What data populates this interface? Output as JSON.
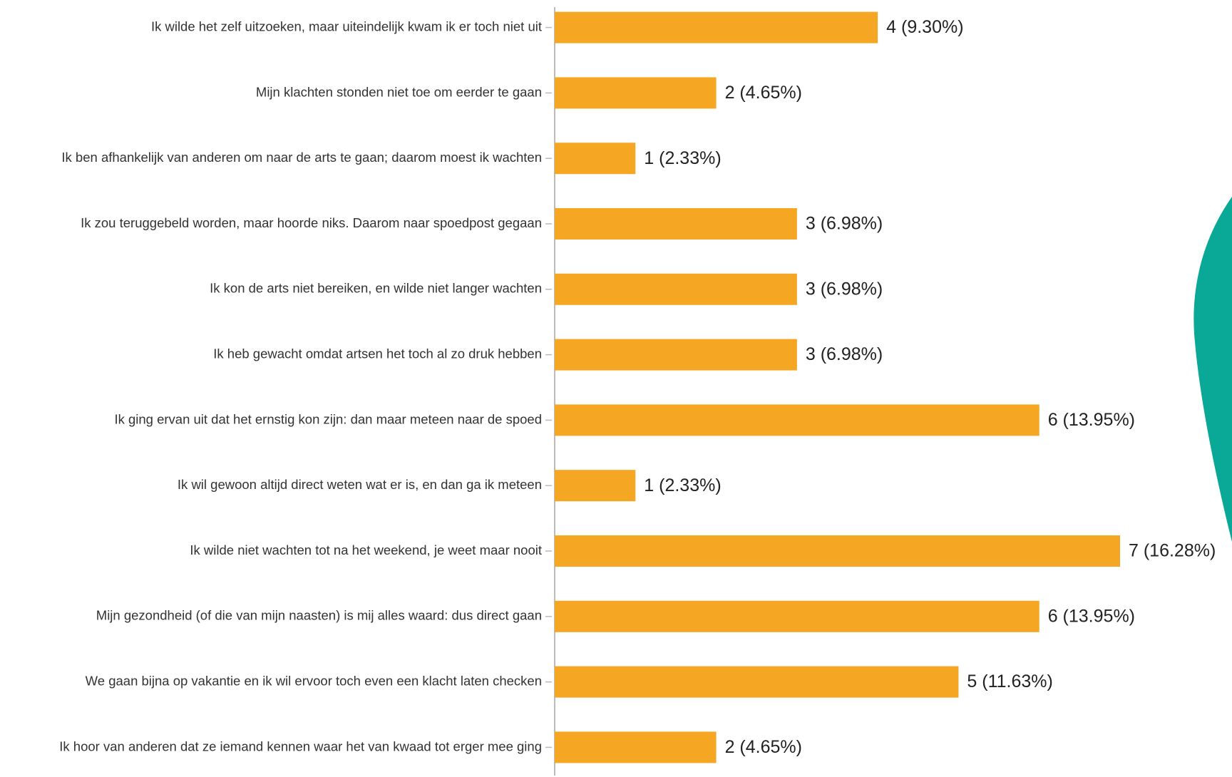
{
  "chart_data": {
    "type": "bar",
    "orientation": "horizontal",
    "color": "#f5a623",
    "categories": [
      "Ik wilde het zelf uitzoeken, maar uiteindelijk kwam ik er toch niet uit",
      "Mijn klachten stonden niet toe om eerder te gaan",
      "Ik ben afhankelijk van anderen om naar de arts te gaan; daarom moest ik wachten",
      "Ik zou teruggebeld worden, maar hoorde niks. Daarom naar spoedpost gegaan",
      "Ik kon de arts niet bereiken, en wilde niet langer wachten",
      "Ik heb gewacht omdat artsen het toch al zo druk hebben",
      "Ik ging ervan uit dat het ernstig kon zijn: dan maar meteen naar de spoed",
      "Ik wil gewoon altijd direct weten wat er is, en dan ga ik meteen",
      "Ik wilde niet wachten tot na het weekend, je weet maar nooit",
      "Mijn gezondheid (of die van mijn naasten) is mij alles waard: dus direct gaan",
      "We gaan bijna op vakantie en ik wil ervoor toch even een klacht laten checken",
      "Ik hoor van anderen dat ze iemand kennen waar het van kwaad tot erger mee ging"
    ],
    "values": [
      4,
      2,
      1,
      3,
      3,
      3,
      6,
      1,
      7,
      6,
      5,
      2
    ],
    "value_labels": [
      "4 (9.30%)",
      "2 (4.65%)",
      "1 (2.33%)",
      "3 (6.98%)",
      "3 (6.98%)",
      "3 (6.98%)",
      "6 (13.95%)",
      "1 (2.33%)",
      "7 (16.28%)",
      "6 (13.95%)",
      "5 (11.63%)",
      "2 (4.65%)"
    ]
  }
}
